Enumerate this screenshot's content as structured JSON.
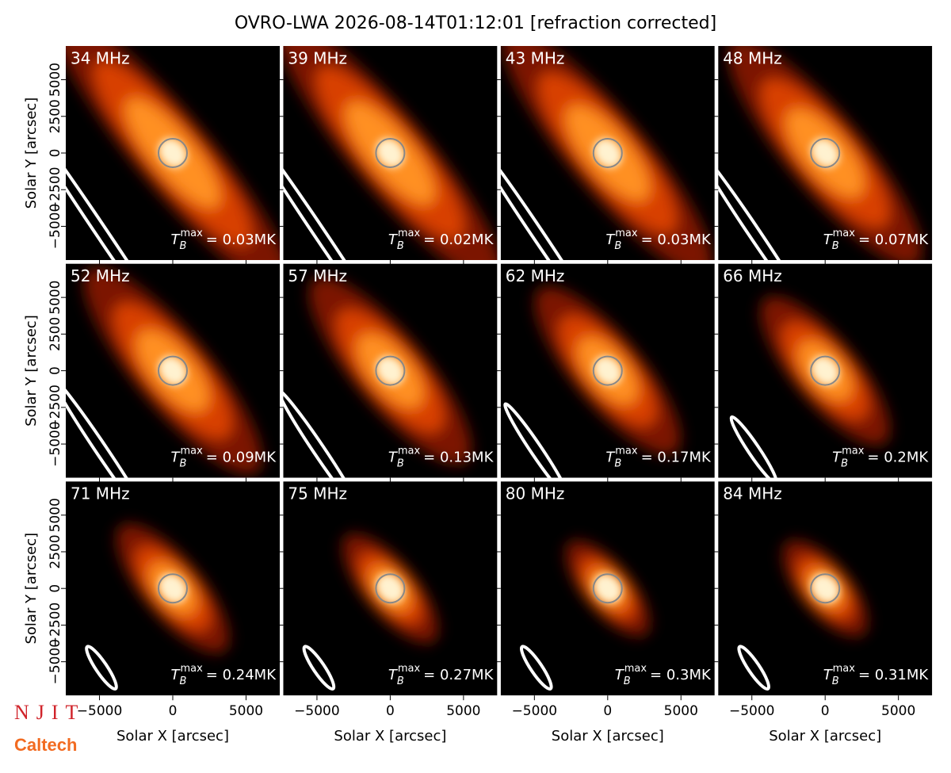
{
  "title": "OVRO-LWA 2026-08-14T01:12:01 [refraction corrected]",
  "logos": [
    "NJIT",
    "Caltech"
  ],
  "tb_symbol": "T",
  "tb_sub": "B",
  "tb_sup": "max",
  "chart_data": [
    {
      "type": "image",
      "title": "34 MHz",
      "annotation": "= 0.03MK",
      "xlabel": "Solar X [arcsec]",
      "ylabel": "Solar Y [arcsec]",
      "xlim": [
        -7300,
        7300
      ],
      "ylim": [
        -7300,
        7300
      ],
      "xticks": [
        {
          "value": -5000,
          "label": "−5000"
        },
        0,
        5000
      ],
      "yticks": [
        {
          "value": -5000,
          "label": "−5000"
        },
        {
          "value": -2500,
          "label": "−2500"
        },
        0,
        2500,
        5000
      ]
    },
    {
      "type": "image",
      "title": "39 MHz",
      "annotation": "= 0.02MK",
      "xlabel": "Solar X [arcsec]",
      "ylabel": "Solar Y [arcsec]",
      "xlim": [
        -7300,
        7300
      ],
      "ylim": [
        -7300,
        7300
      ],
      "xticks": [
        {
          "value": -5000,
          "label": "−5000"
        },
        0,
        5000
      ],
      "yticks": [
        {
          "value": -5000,
          "label": "−5000"
        },
        {
          "value": -2500,
          "label": "−2500"
        },
        0,
        2500,
        5000
      ]
    },
    {
      "type": "image",
      "title": "43 MHz",
      "annotation": "= 0.03MK",
      "xlabel": "Solar X [arcsec]",
      "ylabel": "Solar Y [arcsec]",
      "xlim": [
        -7300,
        7300
      ],
      "ylim": [
        -7300,
        7300
      ],
      "xticks": [
        {
          "value": -5000,
          "label": "−5000"
        },
        0,
        5000
      ],
      "yticks": [
        {
          "value": -5000,
          "label": "−5000"
        },
        {
          "value": -2500,
          "label": "−2500"
        },
        0,
        2500,
        5000
      ]
    },
    {
      "type": "image",
      "title": "48 MHz",
      "annotation": "= 0.07MK",
      "xlabel": "Solar X [arcsec]",
      "ylabel": "Solar Y [arcsec]",
      "xlim": [
        -7300,
        7300
      ],
      "ylim": [
        -7300,
        7300
      ],
      "xticks": [
        {
          "value": -5000,
          "label": "−5000"
        },
        0,
        5000
      ],
      "yticks": [
        {
          "value": -5000,
          "label": "−5000"
        },
        {
          "value": -2500,
          "label": "−2500"
        },
        0,
        2500,
        5000
      ]
    },
    {
      "type": "image",
      "title": "52 MHz",
      "annotation": "= 0.09MK",
      "xlabel": "Solar X [arcsec]",
      "ylabel": "Solar Y [arcsec]",
      "xlim": [
        -7300,
        7300
      ],
      "ylim": [
        -7300,
        7300
      ],
      "xticks": [
        {
          "value": -5000,
          "label": "−5000"
        },
        0,
        5000
      ],
      "yticks": [
        {
          "value": -5000,
          "label": "−5000"
        },
        {
          "value": -2500,
          "label": "−2500"
        },
        0,
        2500,
        5000
      ]
    },
    {
      "type": "image",
      "title": "57 MHz",
      "annotation": "= 0.13MK",
      "xlabel": "Solar X [arcsec]",
      "ylabel": "Solar Y [arcsec]",
      "xlim": [
        -7300,
        7300
      ],
      "ylim": [
        -7300,
        7300
      ],
      "xticks": [
        {
          "value": -5000,
          "label": "−5000"
        },
        0,
        5000
      ],
      "yticks": [
        {
          "value": -5000,
          "label": "−5000"
        },
        {
          "value": -2500,
          "label": "−2500"
        },
        0,
        2500,
        5000
      ]
    },
    {
      "type": "image",
      "title": "62 MHz",
      "annotation": "= 0.17MK",
      "xlabel": "Solar X [arcsec]",
      "ylabel": "Solar Y [arcsec]",
      "xlim": [
        -7300,
        7300
      ],
      "ylim": [
        -7300,
        7300
      ],
      "xticks": [
        {
          "value": -5000,
          "label": "−5000"
        },
        0,
        5000
      ],
      "yticks": [
        {
          "value": -5000,
          "label": "−5000"
        },
        {
          "value": -2500,
          "label": "−2500"
        },
        0,
        2500,
        5000
      ]
    },
    {
      "type": "image",
      "title": "66 MHz",
      "annotation": "= 0.2MK",
      "xlabel": "Solar X [arcsec]",
      "ylabel": "Solar Y [arcsec]",
      "xlim": [
        -7300,
        7300
      ],
      "ylim": [
        -7300,
        7300
      ],
      "xticks": [
        {
          "value": -5000,
          "label": "−5000"
        },
        0,
        5000
      ],
      "yticks": [
        {
          "value": -5000,
          "label": "−5000"
        },
        {
          "value": -2500,
          "label": "−2500"
        },
        0,
        2500,
        5000
      ]
    },
    {
      "type": "image",
      "title": "71 MHz",
      "annotation": "= 0.24MK",
      "xlabel": "Solar X [arcsec]",
      "ylabel": "Solar Y [arcsec]",
      "xlim": [
        -7300,
        7300
      ],
      "ylim": [
        -7300,
        7300
      ],
      "xticks": [
        {
          "value": -5000,
          "label": "−5000"
        },
        0,
        5000
      ],
      "yticks": [
        {
          "value": -5000,
          "label": "−5000"
        },
        {
          "value": -2500,
          "label": "−2500"
        },
        0,
        2500,
        5000
      ]
    },
    {
      "type": "image",
      "title": "75 MHz",
      "annotation": "= 0.27MK",
      "xlabel": "Solar X [arcsec]",
      "ylabel": "Solar Y [arcsec]",
      "xlim": [
        -7300,
        7300
      ],
      "ylim": [
        -7300,
        7300
      ],
      "xticks": [
        {
          "value": -5000,
          "label": "−5000"
        },
        0,
        5000
      ],
      "yticks": [
        {
          "value": -5000,
          "label": "−5000"
        },
        {
          "value": -2500,
          "label": "−2500"
        },
        0,
        2500,
        5000
      ]
    },
    {
      "type": "image",
      "title": "80 MHz",
      "annotation": "= 0.3MK",
      "xlabel": "Solar X [arcsec]",
      "ylabel": "Solar Y [arcsec]",
      "xlim": [
        -7300,
        7300
      ],
      "ylim": [
        -7300,
        7300
      ],
      "xticks": [
        {
          "value": -5000,
          "label": "−5000"
        },
        0,
        5000
      ],
      "yticks": [
        {
          "value": -5000,
          "label": "−5000"
        },
        {
          "value": -2500,
          "label": "−2500"
        },
        0,
        2500,
        5000
      ]
    },
    {
      "type": "image",
      "title": "84 MHz",
      "annotation": "= 0.31MK",
      "xlabel": "Solar X [arcsec]",
      "ylabel": "Solar Y [arcsec]",
      "xlim": [
        -7300,
        7300
      ],
      "ylim": [
        -7300,
        7300
      ],
      "xticks": [
        {
          "value": -5000,
          "label": "−5000"
        },
        0,
        5000
      ],
      "yticks": [
        {
          "value": -5000,
          "label": "−5000"
        },
        {
          "value": -2500,
          "label": "−2500"
        },
        0,
        2500,
        5000
      ]
    }
  ]
}
